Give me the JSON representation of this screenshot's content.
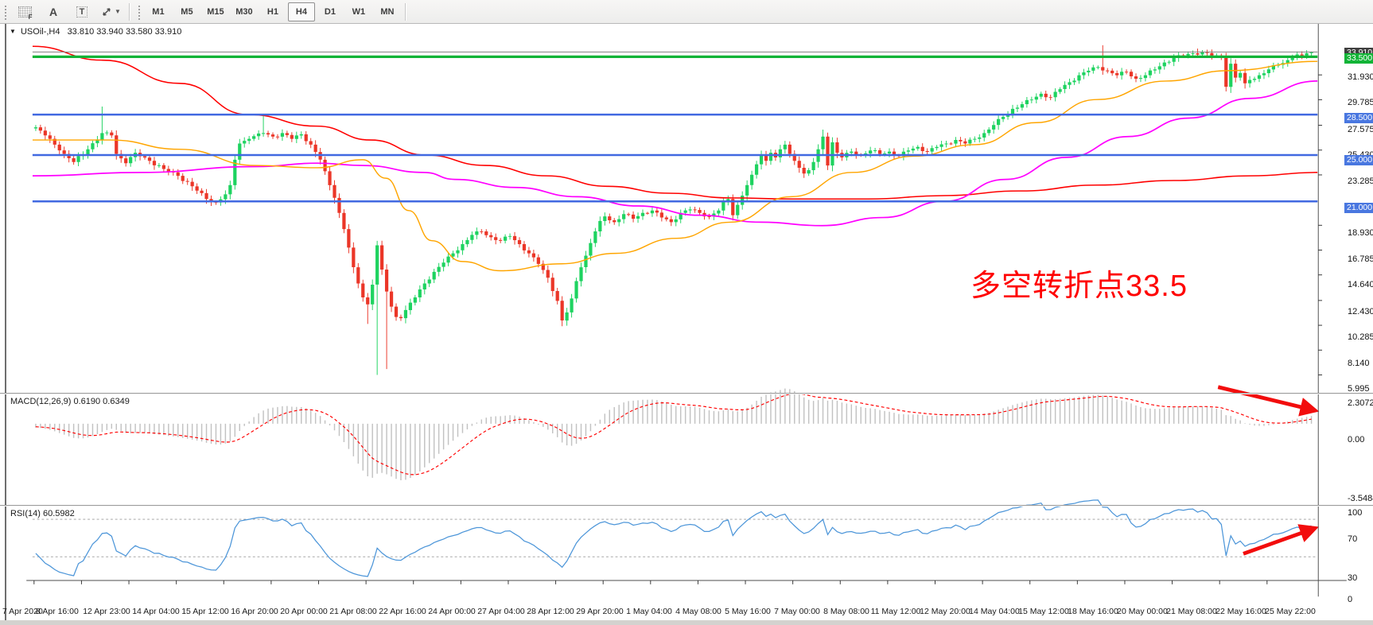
{
  "toolbar": {
    "tool_icons": [
      {
        "name": "frame-profile-tool-icon",
        "glyph": "F"
      },
      {
        "name": "text-label-tool-icon",
        "glyph": "A"
      },
      {
        "name": "text-box-tool-icon",
        "glyph": "T"
      },
      {
        "name": "cycle-arrows-tool-icon",
        "glyph": "arrows"
      }
    ],
    "timeframes": [
      "M1",
      "M5",
      "M15",
      "M30",
      "H1",
      "H4",
      "D1",
      "W1",
      "MN"
    ],
    "active_timeframe": "H4"
  },
  "chart": {
    "header": {
      "symbol": "USOil-,H4",
      "ohlc": "33.810 33.940 33.580 33.910"
    },
    "annotation": {
      "text": "多空转折点33.5",
      "color": "#FF0000"
    }
  },
  "chart_data": {
    "type": "candlestick",
    "instrument": "USOil-",
    "timeframe": "H4",
    "last_ohlc": {
      "open": 33.81,
      "high": 33.94,
      "low": 33.58,
      "close": 33.91
    },
    "colors": {
      "up_candle": "#1ED360",
      "down_candle": "#EB3628",
      "blue_level": "#4169E1",
      "blue_tag": "#4977E0",
      "green_level": "#12B437",
      "last_price_line": "#808080",
      "last_price_tag": "#3F3F3F",
      "ma_slow": "#FF0000",
      "ma_medium": "#FF00FF",
      "ma_fast": "#FFA500",
      "macd_histogram": "#C2C2C2",
      "macd_signal": "#FF0000",
      "rsi_line": "#4D96D9",
      "arrow": "#F20D0D"
    },
    "levels": {
      "green_resistance": 33.5,
      "last_price": 33.91,
      "blue_supports": [
        28.5,
        25.0,
        21.0
      ]
    },
    "price_axis_ticks": [
      31.93,
      29.785,
      27.575,
      25.43,
      23.285,
      18.93,
      16.785,
      14.64,
      12.43,
      10.285,
      8.14,
      5.995
    ],
    "warmup_candles": 40,
    "candle_count": 270,
    "close_anchors": [
      [
        -40,
        28.8
      ],
      [
        -28,
        27.9
      ],
      [
        -16,
        28.3
      ],
      [
        -6,
        27.7
      ],
      [
        0,
        27.4
      ],
      [
        3,
        26.4
      ],
      [
        6,
        25.1
      ],
      [
        8,
        24.4
      ],
      [
        11,
        25.5
      ],
      [
        14,
        26.9
      ],
      [
        16,
        26.7
      ],
      [
        17,
        25.1
      ],
      [
        19,
        24.3
      ],
      [
        21,
        25.2
      ],
      [
        24,
        24.5
      ],
      [
        27,
        23.8
      ],
      [
        30,
        23.2
      ],
      [
        33,
        22.3
      ],
      [
        36,
        21.2
      ],
      [
        38,
        20.9
      ],
      [
        40,
        21.6
      ],
      [
        41,
        22.4
      ],
      [
        42,
        24.6
      ],
      [
        43,
        26.0
      ],
      [
        45,
        26.4
      ],
      [
        48,
        26.9
      ],
      [
        50,
        26.6
      ],
      [
        52,
        26.9
      ],
      [
        54,
        26.4
      ],
      [
        56,
        26.8
      ],
      [
        58,
        25.9
      ],
      [
        60,
        24.6
      ],
      [
        61,
        23.6
      ],
      [
        62,
        22.4
      ],
      [
        63,
        21.3
      ],
      [
        64,
        20.0
      ],
      [
        65,
        18.6
      ],
      [
        66,
        17.0
      ],
      [
        67,
        15.3
      ],
      [
        68,
        13.9
      ],
      [
        69,
        12.7
      ],
      [
        70,
        12.1
      ],
      [
        71,
        13.8
      ],
      [
        72,
        17.2
      ],
      [
        73,
        15.1
      ],
      [
        74,
        13.2
      ],
      [
        75,
        11.9
      ],
      [
        76,
        11.0
      ],
      [
        77,
        10.9
      ],
      [
        78,
        11.6
      ],
      [
        80,
        12.7
      ],
      [
        82,
        13.9
      ],
      [
        84,
        14.9
      ],
      [
        86,
        15.7
      ],
      [
        88,
        16.5
      ],
      [
        90,
        17.3
      ],
      [
        92,
        18.1
      ],
      [
        94,
        18.4
      ],
      [
        96,
        17.9
      ],
      [
        98,
        17.6
      ],
      [
        100,
        18.0
      ],
      [
        102,
        17.3
      ],
      [
        104,
        16.5
      ],
      [
        106,
        15.6
      ],
      [
        108,
        14.4
      ],
      [
        110,
        12.4
      ],
      [
        111,
        10.7
      ],
      [
        112,
        11.4
      ],
      [
        113,
        12.6
      ],
      [
        114,
        14.1
      ],
      [
        115,
        15.3
      ],
      [
        116,
        16.3
      ],
      [
        117,
        17.4
      ],
      [
        118,
        18.4
      ],
      [
        119,
        19.3
      ],
      [
        120,
        19.7
      ],
      [
        122,
        19.2
      ],
      [
        124,
        19.9
      ],
      [
        126,
        19.5
      ],
      [
        128,
        20.0
      ],
      [
        130,
        20.2
      ],
      [
        132,
        19.6
      ],
      [
        134,
        19.2
      ],
      [
        136,
        20.0
      ],
      [
        138,
        20.3
      ],
      [
        140,
        20.0
      ],
      [
        142,
        19.7
      ],
      [
        144,
        20.2
      ],
      [
        145,
        21.0
      ],
      [
        146,
        21.2
      ],
      [
        147,
        19.8
      ],
      [
        148,
        20.7
      ],
      [
        149,
        21.5
      ],
      [
        150,
        22.4
      ],
      [
        151,
        23.3
      ],
      [
        152,
        24.2
      ],
      [
        153,
        25.0
      ],
      [
        154,
        24.5
      ],
      [
        155,
        25.2
      ],
      [
        156,
        24.8
      ],
      [
        157,
        25.5
      ],
      [
        158,
        25.9
      ],
      [
        159,
        25.1
      ],
      [
        160,
        24.5
      ],
      [
        161,
        23.9
      ],
      [
        162,
        23.4
      ],
      [
        163,
        23.7
      ],
      [
        164,
        24.4
      ],
      [
        165,
        25.5
      ],
      [
        166,
        26.6
      ],
      [
        167,
        24.1
      ],
      [
        168,
        26.1
      ],
      [
        169,
        25.2
      ],
      [
        170,
        24.8
      ],
      [
        172,
        25.3
      ],
      [
        174,
        25.0
      ],
      [
        176,
        25.4
      ],
      [
        178,
        25.1
      ],
      [
        180,
        25.3
      ],
      [
        182,
        24.9
      ],
      [
        184,
        25.4
      ],
      [
        186,
        25.7
      ],
      [
        188,
        25.3
      ],
      [
        190,
        25.7
      ],
      [
        192,
        26.0
      ],
      [
        194,
        26.3
      ],
      [
        196,
        26.0
      ],
      [
        198,
        26.4
      ],
      [
        200,
        26.9
      ],
      [
        202,
        27.6
      ],
      [
        204,
        28.3
      ],
      [
        206,
        29.0
      ],
      [
        208,
        29.4
      ],
      [
        210,
        29.8
      ],
      [
        212,
        30.3
      ],
      [
        214,
        30.0
      ],
      [
        216,
        30.7
      ],
      [
        218,
        31.3
      ],
      [
        220,
        31.9
      ],
      [
        222,
        32.3
      ],
      [
        224,
        32.6
      ],
      [
        226,
        32.3
      ],
      [
        228,
        31.9
      ],
      [
        230,
        32.2
      ],
      [
        232,
        31.6
      ],
      [
        234,
        31.9
      ],
      [
        236,
        32.4
      ],
      [
        238,
        33.0
      ],
      [
        240,
        33.4
      ],
      [
        242,
        33.6
      ],
      [
        244,
        33.8
      ],
      [
        246,
        33.9
      ],
      [
        248,
        33.6
      ],
      [
        250,
        33.4
      ],
      [
        251,
        30.9
      ],
      [
        252,
        32.9
      ],
      [
        253,
        31.7
      ],
      [
        254,
        32.1
      ],
      [
        255,
        31.2
      ],
      [
        256,
        31.5
      ],
      [
        258,
        31.9
      ],
      [
        260,
        32.4
      ],
      [
        262,
        32.8
      ],
      [
        264,
        33.2
      ],
      [
        265,
        33.5
      ],
      [
        266,
        33.7
      ],
      [
        267,
        33.6
      ],
      [
        268,
        33.81
      ],
      [
        269,
        33.91
      ]
    ],
    "wick_overrides": [
      [
        14,
        29.2,
        null
      ],
      [
        38,
        null,
        20.7
      ],
      [
        48,
        28.5,
        null
      ],
      [
        70,
        null,
        10.4
      ],
      [
        72,
        null,
        6.0
      ],
      [
        74,
        null,
        6.5
      ],
      [
        111,
        null,
        10.2
      ],
      [
        166,
        27.2,
        null
      ],
      [
        225,
        34.5,
        null
      ],
      [
        245,
        34.2,
        null
      ],
      [
        251,
        null,
        30.5
      ],
      [
        269,
        33.94,
        33.58
      ]
    ],
    "ma_lines": [
      {
        "name": "ma-slow-red",
        "color": "#FF0000",
        "width": 1.6,
        "points": [
          [
            8,
            34.4
          ],
          [
            100,
            33.2
          ],
          [
            200,
            31.2
          ],
          [
            290,
            28.5
          ],
          [
            380,
            27.5
          ],
          [
            450,
            26.3
          ],
          [
            522,
            25.0
          ],
          [
            600,
            24.1
          ],
          [
            680,
            23.2
          ],
          [
            760,
            22.3
          ],
          [
            840,
            21.7
          ],
          [
            920,
            21.3
          ],
          [
            1000,
            21.2
          ],
          [
            1100,
            21.2
          ],
          [
            1200,
            21.5
          ],
          [
            1300,
            21.9
          ],
          [
            1400,
            22.4
          ],
          [
            1500,
            22.8
          ],
          [
            1600,
            23.2
          ],
          [
            1688,
            23.5
          ]
        ]
      },
      {
        "name": "ma-medium-magenta",
        "color": "#FF00FF",
        "width": 1.8,
        "points": [
          [
            8,
            23.2
          ],
          [
            150,
            23.5
          ],
          [
            300,
            24.0
          ],
          [
            380,
            24.3
          ],
          [
            440,
            24.1
          ],
          [
            520,
            23.5
          ],
          [
            560,
            22.9
          ],
          [
            640,
            22.2
          ],
          [
            720,
            21.4
          ],
          [
            800,
            20.6
          ],
          [
            880,
            19.8
          ],
          [
            960,
            19.2
          ],
          [
            1040,
            18.9
          ],
          [
            1120,
            19.6
          ],
          [
            1200,
            21.0
          ],
          [
            1280,
            22.9
          ],
          [
            1360,
            24.8
          ],
          [
            1440,
            26.6
          ],
          [
            1520,
            28.2
          ],
          [
            1600,
            29.9
          ],
          [
            1688,
            31.4
          ]
        ]
      },
      {
        "name": "ma-fast-orange",
        "color": "#FFA500",
        "width": 1.5,
        "points": [
          [
            8,
            26.3
          ],
          [
            110,
            26.3
          ],
          [
            200,
            25.5
          ],
          [
            300,
            24.1
          ],
          [
            380,
            23.9
          ],
          [
            440,
            24.6
          ],
          [
            470,
            23.0
          ],
          [
            500,
            20.2
          ],
          [
            530,
            17.6
          ],
          [
            570,
            15.8
          ],
          [
            620,
            15.0
          ],
          [
            700,
            15.6
          ],
          [
            770,
            16.5
          ],
          [
            850,
            17.8
          ],
          [
            920,
            19.2
          ],
          [
            1000,
            21.4
          ],
          [
            1080,
            23.5
          ],
          [
            1160,
            24.9
          ],
          [
            1240,
            25.9
          ],
          [
            1320,
            27.8
          ],
          [
            1400,
            29.8
          ],
          [
            1490,
            31.4
          ],
          [
            1570,
            32.3
          ],
          [
            1688,
            33.1
          ]
        ]
      }
    ],
    "macd": {
      "label": "MACD(12,26,9) 0.6190 0.6349",
      "fast": 12,
      "slow": 26,
      "signal": 9,
      "current_main": 0.619,
      "current_signal": 0.6349,
      "axis_labels": [
        "2.3072",
        "0.00",
        "-3.5484"
      ]
    },
    "rsi": {
      "label": "RSI(14) 60.5982",
      "period": 14,
      "current": 60.5982,
      "levels": [
        70,
        30
      ],
      "axis_labels": [
        "100",
        "70",
        "30",
        "0"
      ]
    },
    "time_axis_labels": [
      "7 Apr 2020",
      "8 Apr 16:00",
      "12 Apr 23:00",
      "14 Apr 04:00",
      "15 Apr 12:00",
      "16 Apr 20:00",
      "20 Apr 00:00",
      "21 Apr 08:00",
      "22 Apr 16:00",
      "24 Apr 00:00",
      "27 Apr 04:00",
      "28 Apr 12:00",
      "29 Apr 20:00",
      "1 May 04:00",
      "4 May 08:00",
      "5 May 16:00",
      "7 May 00:00",
      "8 May 08:00",
      "11 May 12:00",
      "12 May 20:00",
      "14 May 04:00",
      "15 May 12:00",
      "18 May 16:00",
      "20 May 00:00",
      "21 May 08:00",
      "22 May 16:00",
      "25 May 22:00"
    ],
    "annotations": {
      "text_note": {
        "text": "多空转折点33.5",
        "color": "#FF0000"
      },
      "macd_arrow": {
        "from": [
          1558,
          475
        ],
        "to": [
          1678,
          504
        ]
      },
      "rsi_arrow": {
        "from": [
          1591,
          693
        ],
        "to": [
          1678,
          662
        ]
      }
    }
  }
}
